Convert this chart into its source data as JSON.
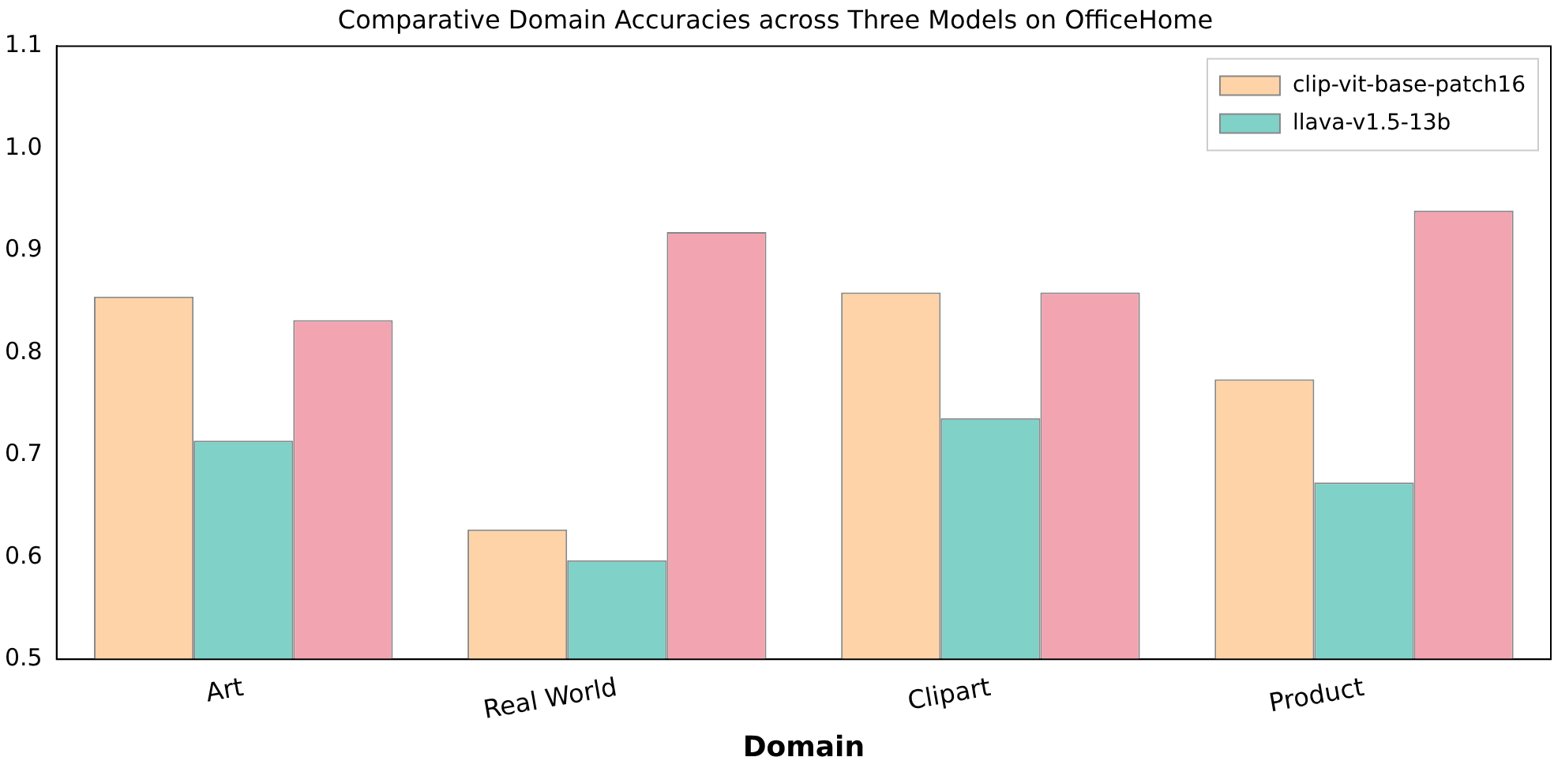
{
  "chart_data": {
    "type": "bar",
    "title": "Comparative Domain Accuracies across Three Models on OfficeHome",
    "xlabel": "Domain",
    "categories": [
      "Art",
      "Real World",
      "Clipart",
      "Product"
    ],
    "series": [
      {
        "name": "clip-vit-base-patch16",
        "color": "#fed3a8",
        "values": [
          0.855,
          0.627,
          0.859,
          0.774
        ]
      },
      {
        "name": "llava-v1.5-13b",
        "color": "#80d1c8",
        "values": [
          0.714,
          0.597,
          0.736,
          0.673
        ]
      },
      {
        "color": "#f2a5b1",
        "values": [
          0.832,
          0.918,
          0.859,
          0.939
        ]
      }
    ],
    "ylim": [
      0.5,
      1.1
    ],
    "yticks": [
      0.5,
      0.6,
      0.7,
      0.8,
      0.9,
      {
        "value": 1.0,
        "label": "1.0"
      },
      1.1
    ],
    "grid": false,
    "legend": "top right"
  }
}
